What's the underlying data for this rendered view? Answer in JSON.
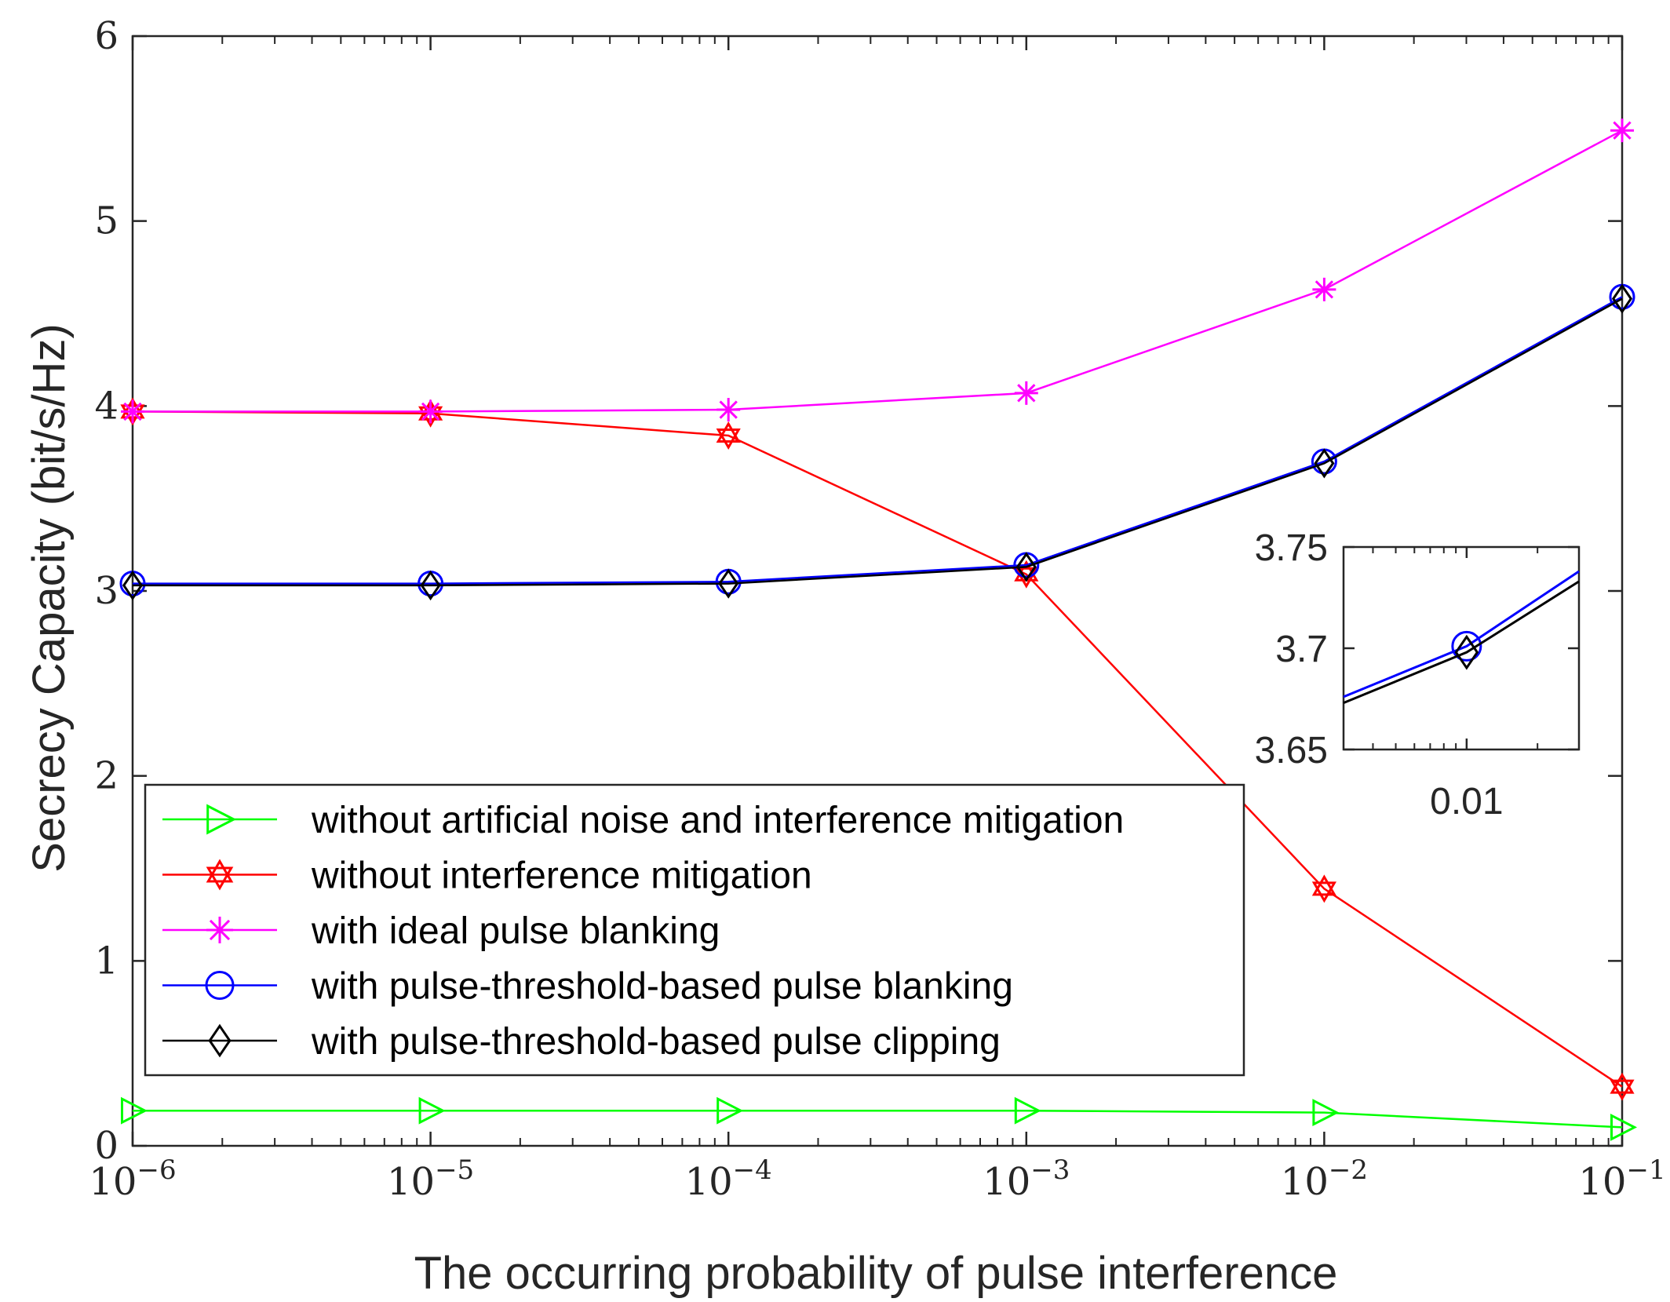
{
  "chart_data": [
    {
      "type": "line",
      "xscale": "log",
      "xlabel": "The occurring probability of pulse interference",
      "ylabel": "Secrecy Capacity (bit/s/Hz)",
      "xlim": [
        1e-06,
        0.1
      ],
      "ylim": [
        0,
        6
      ],
      "x": [
        1e-06,
        1e-05,
        0.0001,
        0.001,
        0.01,
        0.1
      ],
      "xticks": [
        {
          "value": 1e-06,
          "base": "10",
          "exp": "−6"
        },
        {
          "value": 1e-05,
          "base": "10",
          "exp": "−5"
        },
        {
          "value": 0.0001,
          "base": "10",
          "exp": "−4"
        },
        {
          "value": 0.001,
          "base": "10",
          "exp": "−3"
        },
        {
          "value": 0.01,
          "base": "10",
          "exp": "−2"
        },
        {
          "value": 0.1,
          "base": "10",
          "exp": "−1"
        }
      ],
      "yticks": [
        {
          "value": 0,
          "label": "0"
        },
        {
          "value": 1,
          "label": "1"
        },
        {
          "value": 2,
          "label": "2"
        },
        {
          "value": 3,
          "label": "3"
        },
        {
          "value": 4,
          "label": "4"
        },
        {
          "value": 5,
          "label": "5"
        },
        {
          "value": 6,
          "label": "6"
        }
      ],
      "legend_position": "lower-left",
      "series": [
        {
          "name": "without artificial noise and interference mitigation",
          "color": "#00ff00",
          "marker": "triangle-right",
          "values": [
            0.19,
            0.19,
            0.19,
            0.19,
            0.18,
            0.1
          ]
        },
        {
          "name": "without interference mitigation",
          "color": "#ff0000",
          "marker": "hexagram",
          "values": [
            3.97,
            3.96,
            3.84,
            3.09,
            1.39,
            0.32
          ]
        },
        {
          "name": "with ideal pulse blanking",
          "color": "#ff00ff",
          "marker": "asterisk",
          "values": [
            3.97,
            3.97,
            3.98,
            4.07,
            4.63,
            5.49
          ]
        },
        {
          "name": "with pulse-threshold-based pulse blanking",
          "color": "#0000ff",
          "marker": "circle",
          "values": [
            3.04,
            3.04,
            3.05,
            3.14,
            3.7,
            4.59
          ]
        },
        {
          "name": "with pulse-threshold-based pulse clipping",
          "color": "#000000",
          "marker": "diamond",
          "values": [
            3.03,
            3.03,
            3.04,
            3.13,
            3.69,
            4.58
          ]
        }
      ]
    },
    {
      "type": "line",
      "role": "inset",
      "xlim": [
        0.003,
        0.03
      ],
      "ylim": [
        3.65,
        3.75
      ],
      "xscale": "log",
      "xticks": [
        {
          "value": 0.01,
          "label": "0.01"
        }
      ],
      "yticks": [
        {
          "value": 3.65,
          "label": "3.65"
        },
        {
          "value": 3.7,
          "label": "3.7"
        },
        {
          "value": 3.75,
          "label": "3.75"
        }
      ],
      "series": [
        {
          "name": "with pulse-threshold-based pulse blanking",
          "color": "#0000ff",
          "marker": "circle",
          "points": [
            [
              0.003,
              3.676
            ],
            [
              0.01,
              3.701
            ],
            [
              0.03,
              3.738
            ]
          ]
        },
        {
          "name": "with pulse-threshold-based pulse clipping",
          "color": "#000000",
          "marker": "diamond",
          "points": [
            [
              0.003,
              3.673
            ],
            [
              0.01,
              3.698
            ],
            [
              0.03,
              3.733
            ]
          ]
        }
      ]
    }
  ]
}
